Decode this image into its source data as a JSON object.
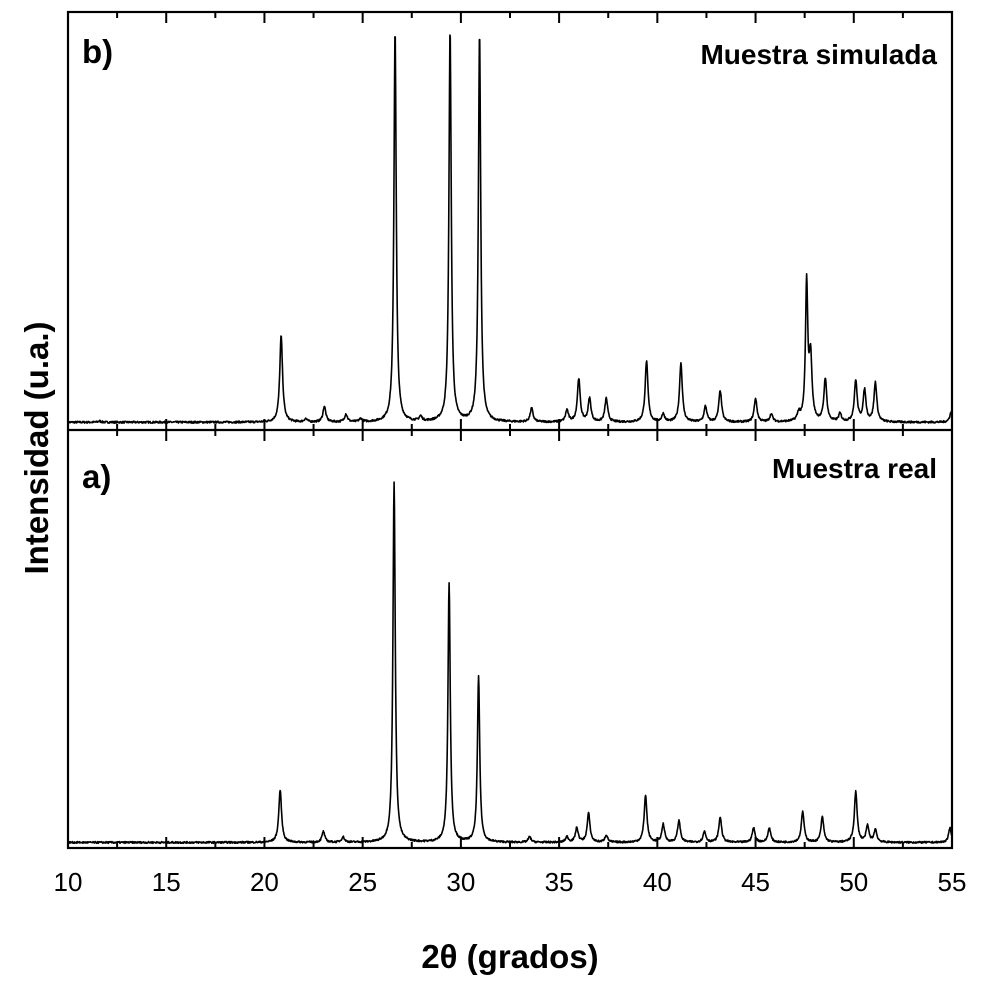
{
  "chart_data": {
    "type": "line",
    "xlabel": "2θ (grados)",
    "ylabel": "Intensidad (u.a.)",
    "xlim": [
      10,
      55
    ],
    "xticks": [
      10,
      15,
      20,
      25,
      30,
      35,
      40,
      45,
      50,
      55
    ],
    "grid": false,
    "panels": [
      {
        "label": "b)",
        "title": "Muestra simulada",
        "color": "#000000",
        "baseline": 0.7,
        "peaks": [
          {
            "x": 11.6,
            "y": 0.3
          },
          {
            "x": 20.85,
            "y": 22.0
          },
          {
            "x": 22.1,
            "y": 0.8
          },
          {
            "x": 23.05,
            "y": 4.0
          },
          {
            "x": 24.15,
            "y": 2.0
          },
          {
            "x": 24.9,
            "y": 0.8
          },
          {
            "x": 26.65,
            "y": 100.0
          },
          {
            "x": 27.95,
            "y": 1.2
          },
          {
            "x": 29.45,
            "y": 100.0
          },
          {
            "x": 30.95,
            "y": 99.0
          },
          {
            "x": 33.6,
            "y": 3.5
          },
          {
            "x": 35.4,
            "y": 3.0
          },
          {
            "x": 36.0,
            "y": 11.0
          },
          {
            "x": 36.55,
            "y": 6.0
          },
          {
            "x": 37.4,
            "y": 6.0
          },
          {
            "x": 39.45,
            "y": 15.5
          },
          {
            "x": 40.3,
            "y": 2.0
          },
          {
            "x": 41.2,
            "y": 15.0
          },
          {
            "x": 42.45,
            "y": 4.0
          },
          {
            "x": 43.2,
            "y": 8.0
          },
          {
            "x": 45.0,
            "y": 6.0
          },
          {
            "x": 45.8,
            "y": 2.0
          },
          {
            "x": 47.2,
            "y": 2.0
          },
          {
            "x": 47.6,
            "y": 35.0
          },
          {
            "x": 47.8,
            "y": 16.0
          },
          {
            "x": 48.55,
            "y": 11.0
          },
          {
            "x": 49.3,
            "y": 2.0
          },
          {
            "x": 50.1,
            "y": 10.5
          },
          {
            "x": 50.55,
            "y": 8.0
          },
          {
            "x": 51.1,
            "y": 10.0
          },
          {
            "x": 54.95,
            "y": 2.5
          }
        ]
      },
      {
        "label": "a)",
        "title": "Muestra real",
        "color": "#000000",
        "baseline": 0.7,
        "peaks": [
          {
            "x": 20.8,
            "y": 14.5
          },
          {
            "x": 23.0,
            "y": 3.0
          },
          {
            "x": 24.0,
            "y": 1.5
          },
          {
            "x": 26.6,
            "y": 100.0
          },
          {
            "x": 29.4,
            "y": 72.0
          },
          {
            "x": 30.9,
            "y": 46.0
          },
          {
            "x": 33.5,
            "y": 1.5
          },
          {
            "x": 35.4,
            "y": 1.5
          },
          {
            "x": 35.9,
            "y": 4.0
          },
          {
            "x": 36.5,
            "y": 8.0
          },
          {
            "x": 37.4,
            "y": 2.0
          },
          {
            "x": 39.4,
            "y": 13.0
          },
          {
            "x": 40.3,
            "y": 5.0
          },
          {
            "x": 41.1,
            "y": 6.0
          },
          {
            "x": 42.4,
            "y": 3.0
          },
          {
            "x": 43.2,
            "y": 7.0
          },
          {
            "x": 44.9,
            "y": 4.0
          },
          {
            "x": 45.7,
            "y": 4.0
          },
          {
            "x": 47.4,
            "y": 8.5
          },
          {
            "x": 48.4,
            "y": 7.0
          },
          {
            "x": 50.1,
            "y": 14.0
          },
          {
            "x": 50.7,
            "y": 4.5
          },
          {
            "x": 51.1,
            "y": 3.5
          },
          {
            "x": 54.9,
            "y": 4.0
          }
        ]
      }
    ]
  }
}
